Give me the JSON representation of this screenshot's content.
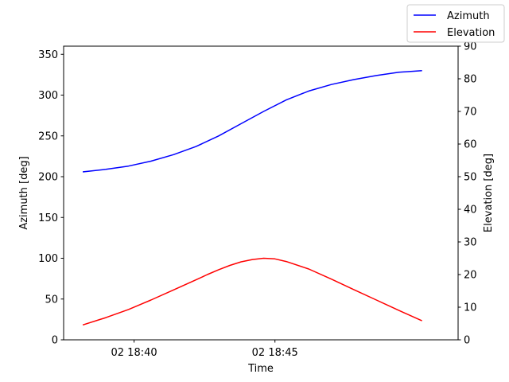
{
  "chart_data": {
    "type": "line",
    "title": "",
    "xlabel": "Time",
    "ylabel_left": "Azimuth [deg]",
    "ylabel_right": "Elevation [deg]",
    "x_ticks": [
      {
        "minute": 40,
        "label": "02 18:40"
      },
      {
        "minute": 45,
        "label": "02 18:45"
      }
    ],
    "xlim_minutes": [
      37.5,
      51.5
    ],
    "ylim_left": [
      0,
      360
    ],
    "ylim_right": [
      0,
      90
    ],
    "yticks_left": [
      0,
      50,
      100,
      150,
      200,
      250,
      300,
      350
    ],
    "yticks_right": [
      0,
      10,
      20,
      30,
      40,
      50,
      60,
      70,
      80,
      90
    ],
    "legend_position": "top-right",
    "grid": false,
    "series": [
      {
        "name": "Azimuth",
        "axis": "left",
        "color": "#0000ff",
        "x_minutes": [
          38.2,
          39.0,
          39.8,
          40.6,
          41.4,
          42.2,
          43.0,
          43.8,
          44.6,
          45.4,
          46.2,
          47.0,
          47.8,
          48.6,
          49.4,
          50.2
        ],
        "values": [
          206,
          209,
          213,
          219,
          227,
          237,
          250,
          265,
          280,
          294,
          305,
          313,
          319,
          324,
          328,
          330
        ]
      },
      {
        "name": "Elevation",
        "axis": "right",
        "color": "#ff0000",
        "x_minutes": [
          38.2,
          39.0,
          39.8,
          40.6,
          41.4,
          42.2,
          42.6,
          43.0,
          43.4,
          43.8,
          44.2,
          44.6,
          45.0,
          45.4,
          46.2,
          47.0,
          47.8,
          48.6,
          49.4,
          50.2
        ],
        "values": [
          4.6,
          6.8,
          9.3,
          12.2,
          15.3,
          18.4,
          20.0,
          21.5,
          22.8,
          23.9,
          24.6,
          25.0,
          24.8,
          24.0,
          21.7,
          18.6,
          15.4,
          12.2,
          9.0,
          5.9
        ]
      }
    ]
  }
}
